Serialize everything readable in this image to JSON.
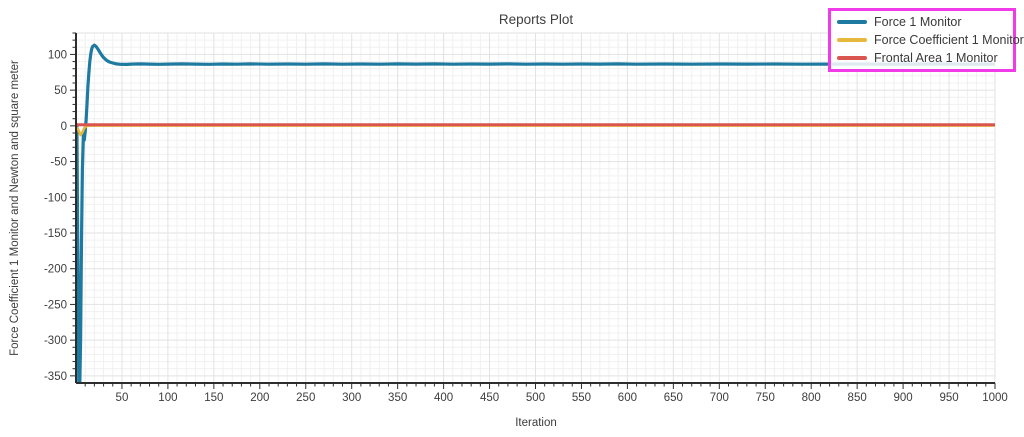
{
  "colors": {
    "background": "#ffffff",
    "axis": "#2d2d2d",
    "grid_minor": "#f0f0f0",
    "grid_major": "#e2e2e2",
    "tick_text": "#3d3d3d",
    "legend_border": "#f13be8"
  },
  "chart_data": {
    "type": "line",
    "title": "Reports Plot",
    "xlabel": "Iteration",
    "ylabel": "Force Coefficient 1 Monitor and Newton and square meter",
    "xlim": [
      0,
      1000
    ],
    "ylim": [
      -360,
      130
    ],
    "xticks": [
      50,
      100,
      150,
      200,
      250,
      300,
      350,
      400,
      450,
      500,
      550,
      600,
      650,
      700,
      750,
      800,
      850,
      900,
      950,
      1000
    ],
    "yticks": [
      100,
      50,
      0,
      -50,
      -100,
      -150,
      -200,
      -250,
      -300,
      -350
    ],
    "minor_tick_step": 10,
    "grid": true,
    "legend_position": "top-right",
    "series": [
      {
        "name": "Force 1 Monitor",
        "color": "#1e7aa1",
        "width": 3.2,
        "points": [
          [
            1,
            0
          ],
          [
            2,
            -180
          ],
          [
            3,
            -369
          ],
          [
            4,
            -369
          ],
          [
            5,
            -300
          ],
          [
            6,
            -160
          ],
          [
            7,
            -60
          ],
          [
            8,
            -12
          ],
          [
            9,
            -20
          ],
          [
            10,
            -8
          ],
          [
            11,
            8
          ],
          [
            12,
            30
          ],
          [
            13,
            55
          ],
          [
            14,
            75
          ],
          [
            15,
            90
          ],
          [
            16,
            100
          ],
          [
            17,
            107
          ],
          [
            18,
            111
          ],
          [
            20,
            113
          ],
          [
            22,
            111
          ],
          [
            24,
            107
          ],
          [
            26,
            103
          ],
          [
            28,
            99
          ],
          [
            30,
            95.5
          ],
          [
            33,
            92
          ],
          [
            36,
            89.5
          ],
          [
            40,
            88
          ],
          [
            44,
            86.8
          ],
          [
            48,
            86.2
          ],
          [
            55,
            86
          ],
          [
            60,
            86.4
          ],
          [
            70,
            86.8
          ],
          [
            80,
            86.5
          ],
          [
            90,
            86.2
          ],
          [
            100,
            86.5
          ],
          [
            115,
            86.8
          ],
          [
            130,
            86.4
          ],
          [
            145,
            86.2
          ],
          [
            160,
            86.6
          ],
          [
            175,
            86.3
          ],
          [
            190,
            86.7
          ],
          [
            210,
            86.3
          ],
          [
            230,
            86.6
          ],
          [
            250,
            86.3
          ],
          [
            270,
            86.7
          ],
          [
            290,
            86.3
          ],
          [
            310,
            86.6
          ],
          [
            330,
            86.3
          ],
          [
            350,
            86.7
          ],
          [
            370,
            86.4
          ],
          [
            390,
            86.7
          ],
          [
            410,
            86.3
          ],
          [
            430,
            86.6
          ],
          [
            450,
            86.4
          ],
          [
            470,
            86.7
          ],
          [
            490,
            86.3
          ],
          [
            510,
            86.6
          ],
          [
            530,
            86.3
          ],
          [
            550,
            86.6
          ],
          [
            570,
            86.4
          ],
          [
            590,
            86.7
          ],
          [
            610,
            86.3
          ],
          [
            640,
            86.6
          ],
          [
            670,
            86.3
          ],
          [
            700,
            86.6
          ],
          [
            730,
            86.4
          ],
          [
            760,
            86.6
          ],
          [
            790,
            86.3
          ],
          [
            820,
            86.5
          ],
          [
            850,
            86.6
          ],
          [
            880,
            86.3
          ],
          [
            910,
            86.5
          ],
          [
            940,
            86.6
          ],
          [
            970,
            86.3
          ],
          [
            1000,
            86.5
          ]
        ]
      },
      {
        "name": "Force Coefficient 1 Monitor",
        "color": "#e6b93e",
        "width": 2.6,
        "points": [
          [
            1,
            -2
          ],
          [
            3,
            -7
          ],
          [
            5,
            -13
          ],
          [
            7,
            -9
          ],
          [
            9,
            -3
          ],
          [
            12,
            0.2
          ],
          [
            20,
            0.4
          ],
          [
            1000,
            0.4
          ]
        ]
      },
      {
        "name": "Frontal Area 1 Monitor",
        "color": "#da554f",
        "width": 3,
        "points": [
          [
            1,
            1.5
          ],
          [
            1000,
            1.5
          ]
        ]
      }
    ]
  }
}
